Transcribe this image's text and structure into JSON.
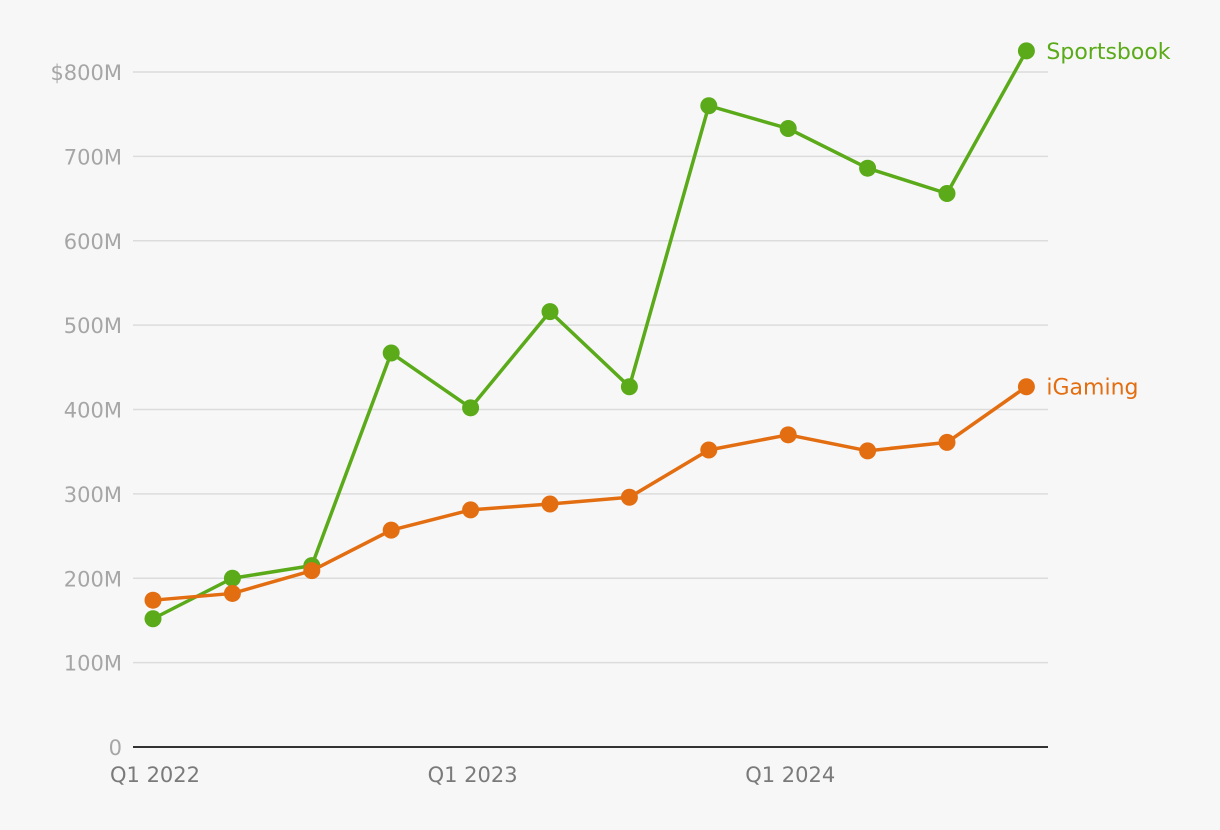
{
  "chart_data": {
    "type": "line",
    "title": "",
    "xlabel": "",
    "ylabel": "",
    "x": [
      "Q1 2022",
      "Q2 2022",
      "Q3 2022",
      "Q4 2022",
      "Q1 2023",
      "Q2 2023",
      "Q3 2023",
      "Q4 2023",
      "Q1 2024",
      "Q2 2024",
      "Q3 2024",
      "Q4 2024"
    ],
    "x_tick_labels": [
      {
        "index": 0,
        "label": "Q1 2022"
      },
      {
        "index": 4,
        "label": "Q1 2023"
      },
      {
        "index": 8,
        "label": "Q1 2024"
      }
    ],
    "y_ticks": [
      {
        "value": 0,
        "label": "0"
      },
      {
        "value": 100,
        "label": "100M"
      },
      {
        "value": 200,
        "label": "200M"
      },
      {
        "value": 300,
        "label": "300M"
      },
      {
        "value": 400,
        "label": "400M"
      },
      {
        "value": 500,
        "label": "500M"
      },
      {
        "value": 600,
        "label": "600M"
      },
      {
        "value": 700,
        "label": "700M"
      },
      {
        "value": 800,
        "label": "$800M"
      }
    ],
    "ylim": [
      0,
      800
    ],
    "grid": true,
    "legend": "direct labels at line ends",
    "series": [
      {
        "name": "Sportsbook",
        "color": "#5aaa1a",
        "values": [
          152,
          200,
          215,
          467,
          402,
          516,
          427,
          760,
          733,
          686,
          656,
          825
        ]
      },
      {
        "name": "iGaming",
        "color": "#e36e12",
        "values": [
          174,
          182,
          209,
          257,
          281,
          288,
          296,
          352,
          370,
          351,
          361,
          427
        ]
      }
    ]
  }
}
